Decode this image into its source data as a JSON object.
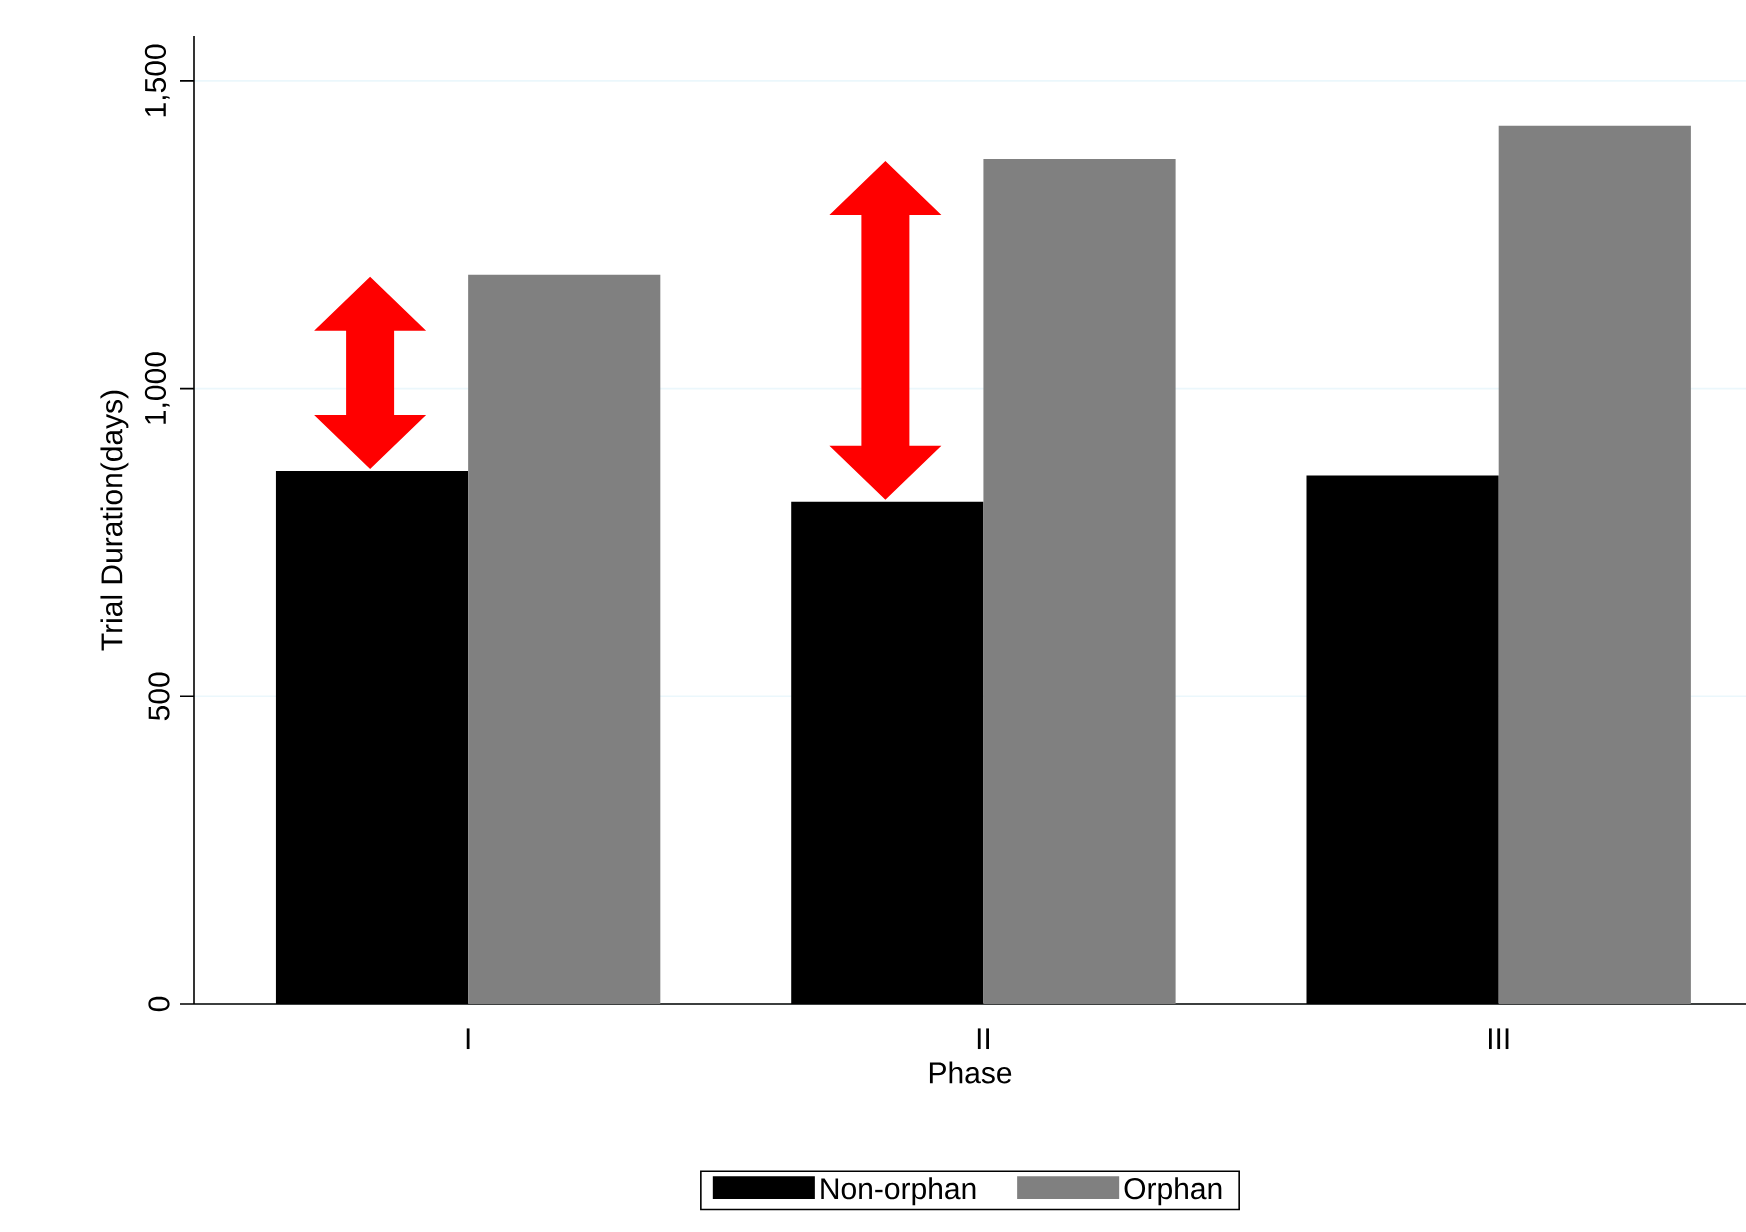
{
  "chart_data": {
    "type": "bar",
    "xlabel": "Phase",
    "ylabel": "Trial Duration(days)",
    "categories": [
      "I",
      "II",
      "III"
    ],
    "series": [
      {
        "name": "Non-orphan",
        "color": "#000000",
        "values": [
          866,
          816,
          859
        ]
      },
      {
        "name": "Orphan",
        "color": "#808080",
        "values": [
          1185,
          1373,
          1427
        ]
      }
    ],
    "ylim": [
      0,
      1573
    ],
    "yticks": [
      0,
      500,
      {
        "value": 1000,
        "label": "1,000"
      },
      {
        "value": 1500,
        "label": "1,500"
      }
    ],
    "grid": "y",
    "legend": "bottom"
  }
}
